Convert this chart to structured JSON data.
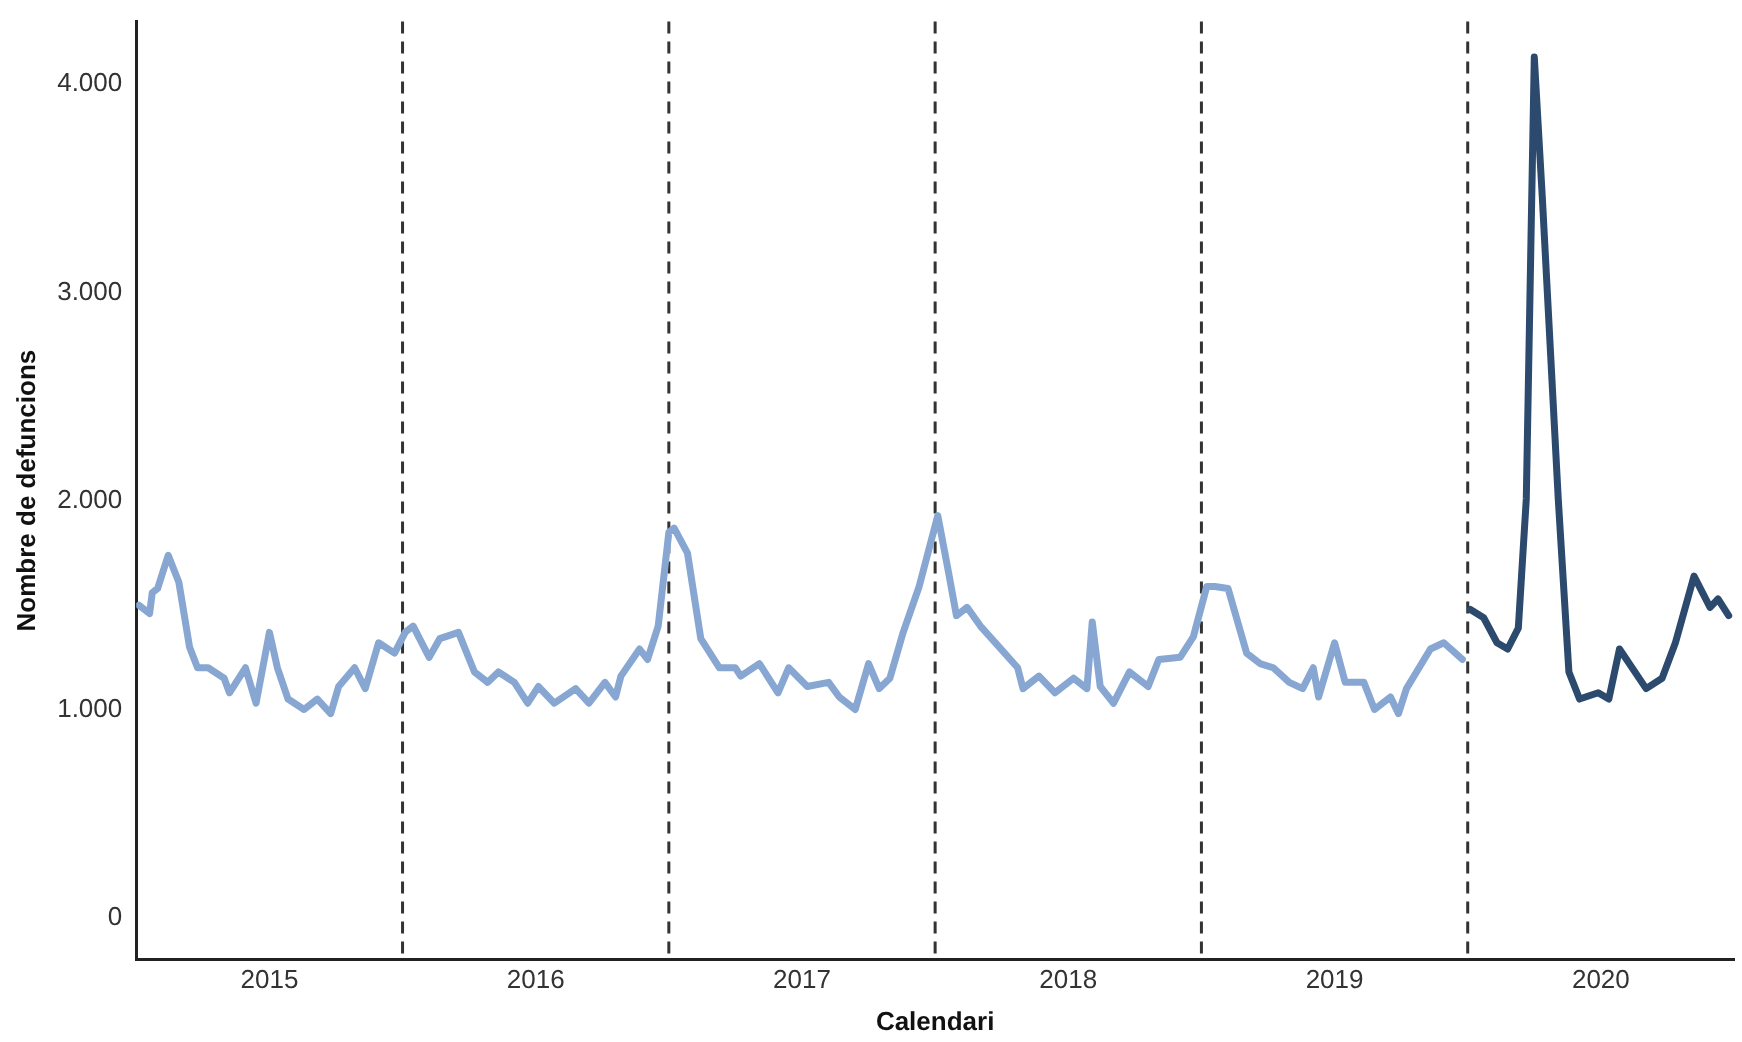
{
  "chart_data": {
    "type": "line",
    "xlabel": "Calendari",
    "ylabel": "Nombre de defuncions",
    "xlim": [
      2015,
      2021
    ],
    "xticks": [
      {
        "value": 2015.5,
        "label": "2015"
      },
      {
        "value": 2016.5,
        "label": "2016"
      },
      {
        "value": 2017.5,
        "label": "2017"
      },
      {
        "value": 2018.5,
        "label": "2018"
      },
      {
        "value": 2019.5,
        "label": "2019"
      },
      {
        "value": 2020.5,
        "label": "2020"
      }
    ],
    "ylim": [
      -200,
      4300
    ],
    "yticks": [
      {
        "value": 0,
        "label": "0"
      },
      {
        "value": 1000,
        "label": "1.000"
      },
      {
        "value": 2000,
        "label": "2.000"
      },
      {
        "value": 3000,
        "label": "3.000"
      },
      {
        "value": 4000,
        "label": "4.000"
      }
    ],
    "grid": false,
    "legend": false,
    "marker": "none",
    "line_style": "solid",
    "ref_lines": [
      {
        "axis": "x",
        "value": 2016,
        "color": "#333333",
        "line_style": "dashed"
      },
      {
        "axis": "x",
        "value": 2017,
        "color": "#333333",
        "line_style": "dashed"
      },
      {
        "axis": "x",
        "value": 2018,
        "color": "#333333",
        "line_style": "dashed"
      },
      {
        "axis": "x",
        "value": 2019,
        "color": "#333333",
        "line_style": "dashed"
      },
      {
        "axis": "x",
        "value": 2020,
        "color": "#333333",
        "line_style": "dashed"
      }
    ],
    "series": [
      {
        "color": "#87a7d2",
        "x": [
          2015.01,
          2015.05,
          2015.06,
          2015.08,
          2015.12,
          2015.16,
          2015.2,
          2015.23,
          2015.27,
          2015.33,
          2015.35,
          2015.41,
          2015.45,
          2015.5,
          2015.53,
          2015.57,
          2015.63,
          2015.68,
          2015.73,
          2015.76,
          2015.82,
          2015.86,
          2015.91,
          2015.97,
          2016.01,
          2016.04,
          2016.1,
          2016.14,
          2016.21,
          2016.27,
          2016.32,
          2016.36,
          2016.42,
          2016.47,
          2016.51,
          2016.57,
          2016.65,
          2016.7,
          2016.76,
          2016.8,
          2016.82,
          2016.89,
          2016.92,
          2016.96,
          2017,
          2017.02,
          2017.07,
          2017.12,
          2017.19,
          2017.25,
          2017.27,
          2017.34,
          2017.41,
          2017.45,
          2017.52,
          2017.6,
          2017.64,
          2017.7,
          2017.75,
          2017.79,
          2017.83,
          2017.88,
          2017.94,
          2018.01,
          2018.05,
          2018.08,
          2018.12,
          2018.17,
          2018.24,
          2018.31,
          2018.33,
          2018.39,
          2018.45,
          2018.52,
          2018.57,
          2018.59,
          2018.62,
          2018.67,
          2018.73,
          2018.8,
          2018.84,
          2018.92,
          2018.97,
          2019.02,
          2019.05,
          2019.1,
          2019.17,
          2019.22,
          2019.27,
          2019.33,
          2019.38,
          2019.42,
          2019.44,
          2019.5,
          2019.54,
          2019.61,
          2019.65,
          2019.71,
          2019.74,
          2019.77,
          2019.86,
          2019.91,
          2019.98
        ],
        "values": [
          1500,
          1460,
          1560,
          1580,
          1740,
          1610,
          1300,
          1200,
          1200,
          1150,
          1080,
          1200,
          1030,
          1370,
          1200,
          1050,
          1000,
          1050,
          980,
          1110,
          1200,
          1100,
          1320,
          1270,
          1370,
          1400,
          1250,
          1340,
          1370,
          1180,
          1130,
          1180,
          1130,
          1030,
          1110,
          1030,
          1100,
          1030,
          1130,
          1060,
          1160,
          1290,
          1240,
          1400,
          1850,
          1870,
          1750,
          1340,
          1200,
          1200,
          1160,
          1220,
          1080,
          1200,
          1110,
          1130,
          1060,
          1000,
          1220,
          1100,
          1150,
          1370,
          1590,
          1930,
          1660,
          1450,
          1490,
          1400,
          1300,
          1200,
          1100,
          1160,
          1080,
          1150,
          1100,
          1420,
          1110,
          1030,
          1180,
          1110,
          1240,
          1250,
          1350,
          1590,
          1590,
          1580,
          1270,
          1220,
          1200,
          1130,
          1100,
          1200,
          1060,
          1320,
          1130,
          1130,
          1000,
          1060,
          980,
          1100,
          1290,
          1320,
          1240
        ]
      },
      {
        "color": "#2c4a6e",
        "x": [
          2020.01,
          2020.06,
          2020.11,
          2020.15,
          2020.19,
          2020.22,
          2020.25,
          2020.28,
          2020.34,
          2020.38,
          2020.42,
          2020.49,
          2020.53,
          2020.57,
          2020.67,
          2020.73,
          2020.78,
          2020.85,
          2020.91,
          2020.94,
          2020.98
        ],
        "values": [
          1480,
          1440,
          1320,
          1290,
          1390,
          2010,
          4130,
          3460,
          2010,
          1180,
          1050,
          1080,
          1050,
          1290,
          1100,
          1150,
          1320,
          1640,
          1490,
          1530,
          1450
        ]
      }
    ]
  }
}
